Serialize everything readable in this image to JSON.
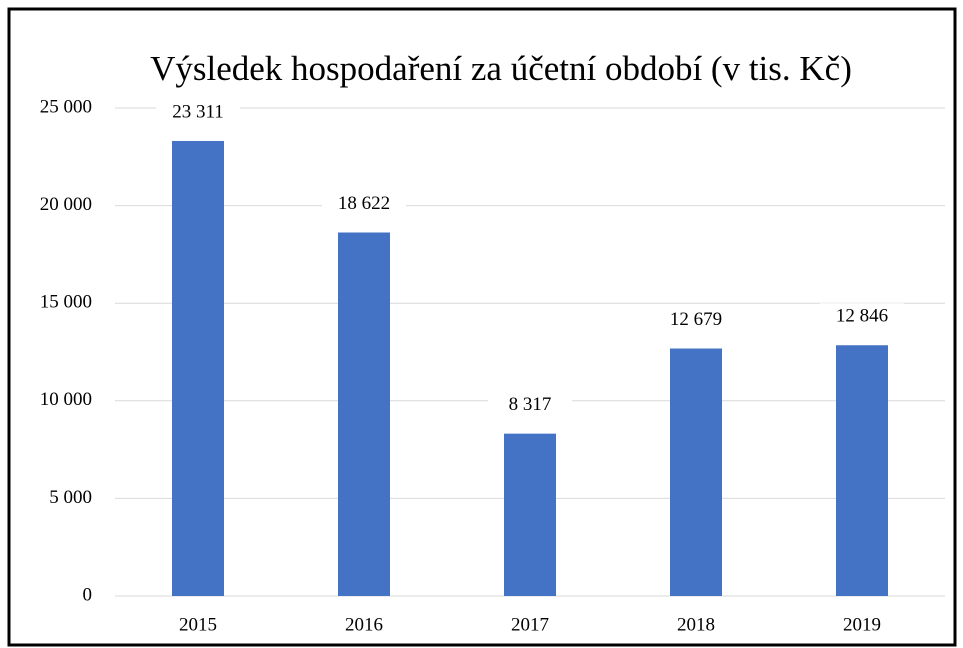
{
  "chart_data": {
    "type": "bar",
    "title": "Výsledek hospodaření za účetní období (v tis. Kč)",
    "categories": [
      "2015",
      "2016",
      "2017",
      "2018",
      "2019"
    ],
    "values": [
      23311,
      18622,
      8317,
      12679,
      12846
    ],
    "value_labels": [
      "23 311",
      "18 622",
      "8 317",
      "12 679",
      "12 846"
    ],
    "color": "#4472c4",
    "ylim": [
      0,
      25000
    ],
    "yticks": [
      0,
      {
        "value": 5000,
        "label": "5 000"
      },
      {
        "value": 10000,
        "label": "10 000"
      },
      {
        "value": 15000,
        "label": "15 000"
      },
      {
        "value": 20000,
        "label": "20 000"
      },
      {
        "value": 25000,
        "label": "25 000"
      }
    ],
    "grid": true
  }
}
